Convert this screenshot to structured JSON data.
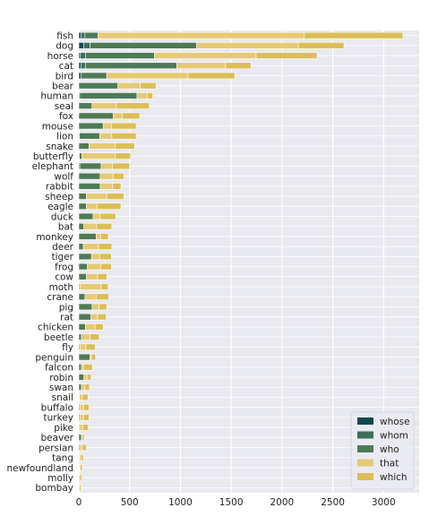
{
  "chart_data": {
    "type": "bar",
    "orientation": "horizontal",
    "stacked": true,
    "categories": [
      "fish",
      "dog",
      "horse",
      "cat",
      "bird",
      "bear",
      "human",
      "seal",
      "fox",
      "mouse",
      "lion",
      "snake",
      "butterfly",
      "elephant",
      "wolf",
      "rabbit",
      "sheep",
      "eagle",
      "duck",
      "bat",
      "monkey",
      "deer",
      "tiger",
      "frog",
      "cow",
      "moth",
      "crane",
      "pig",
      "rat",
      "chicken",
      "beetle",
      "fly",
      "penguin",
      "falcon",
      "robin",
      "swan",
      "snail",
      "buffalo",
      "turkey",
      "pike",
      "beaver",
      "persian",
      "tang",
      "newfoundland",
      "molly",
      "bombay"
    ],
    "series": [
      {
        "name": "whose",
        "color": "#0c4a4f",
        "values": [
          20,
          50,
          15,
          20,
          20,
          0,
          8,
          0,
          0,
          0,
          5,
          0,
          5,
          10,
          0,
          0,
          0,
          0,
          0,
          0,
          0,
          0,
          0,
          0,
          0,
          0,
          0,
          0,
          0,
          0,
          0,
          0,
          0,
          0,
          0,
          0,
          0,
          0,
          0,
          0,
          0,
          0,
          0,
          0,
          0,
          0
        ]
      },
      {
        "name": "whom",
        "color": "#3d6e5a",
        "values": [
          40,
          60,
          50,
          45,
          0,
          0,
          0,
          0,
          0,
          0,
          0,
          0,
          0,
          0,
          0,
          0,
          0,
          0,
          0,
          0,
          0,
          0,
          0,
          0,
          0,
          0,
          0,
          0,
          0,
          0,
          0,
          0,
          0,
          0,
          0,
          0,
          0,
          0,
          0,
          0,
          0,
          0,
          0,
          0,
          0,
          0
        ]
      },
      {
        "name": "who",
        "color": "#4e7a55",
        "values": [
          130,
          1050,
          680,
          900,
          255,
          385,
          565,
          130,
          340,
          240,
          200,
          100,
          25,
          210,
          210,
          210,
          75,
          75,
          140,
          50,
          170,
          45,
          125,
          85,
          75,
          10,
          60,
          130,
          120,
          65,
          25,
          10,
          110,
          25,
          50,
          25,
          5,
          10,
          10,
          8,
          25,
          10,
          5,
          5,
          0,
          0
        ]
      },
      {
        "name": "that",
        "color": "#e6c975",
        "values": [
          2030,
          1000,
          1000,
          480,
          800,
          220,
          100,
          240,
          90,
          80,
          120,
          260,
          330,
          110,
          130,
          120,
          200,
          105,
          70,
          125,
          45,
          150,
          80,
          130,
          110,
          210,
          110,
          70,
          65,
          95,
          85,
          60,
          15,
          20,
          30,
          35,
          30,
          35,
          35,
          30,
          10,
          25,
          15,
          10,
          10,
          5
        ]
      },
      {
        "name": "which",
        "color": "#dcbe57",
        "values": [
          970,
          450,
          600,
          250,
          460,
          155,
          55,
          325,
          170,
          245,
          240,
          190,
          150,
          170,
          105,
          85,
          170,
          235,
          155,
          150,
          75,
          130,
          115,
          105,
          90,
          70,
          125,
          75,
          85,
          80,
          90,
          90,
          40,
          90,
          40,
          45,
          55,
          55,
          55,
          55,
          20,
          40,
          25,
          20,
          20,
          15
        ]
      }
    ],
    "xlim": [
      0,
      3350
    ],
    "xticks": [
      0,
      500,
      1000,
      1500,
      2000,
      2500,
      3000
    ],
    "xtick_labels": [
      "0",
      "500",
      "1000",
      "1500",
      "2000",
      "2500",
      "3000"
    ],
    "grid": true,
    "legend_position": "lower-right",
    "background": "#e9e9f0"
  }
}
